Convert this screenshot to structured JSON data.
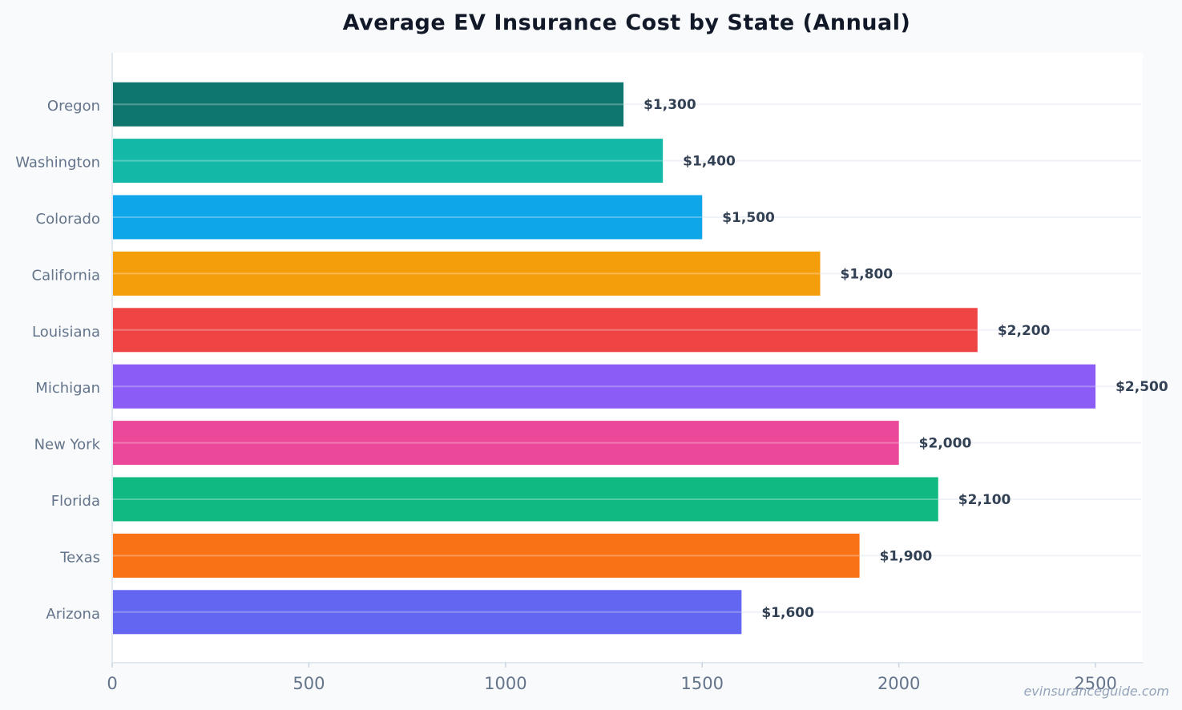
{
  "chart_data": {
    "type": "bar",
    "orientation": "horizontal",
    "title": "Average EV Insurance Cost by State (Annual)",
    "xlabel": "",
    "ylabel": "",
    "categories": [
      "Oregon",
      "Washington",
      "Colorado",
      "California",
      "Louisiana",
      "Michigan",
      "New York",
      "Florida",
      "Texas",
      "Arizona"
    ],
    "values": [
      1300,
      1400,
      1500,
      1800,
      2200,
      2500,
      2000,
      2100,
      1900,
      1600
    ],
    "value_labels": [
      "$1,300",
      "$1,400",
      "$1,500",
      "$1,800",
      "$2,200",
      "$2,500",
      "$2,000",
      "$2,100",
      "$1,900",
      "$1,600"
    ],
    "colors": [
      "#0f766e",
      "#14b8a6",
      "#0ea5e9",
      "#f59e0b",
      "#ef4444",
      "#8b5cf6",
      "#ec4899",
      "#10b981",
      "#f97316",
      "#6366f1"
    ],
    "xlim": [
      0,
      2620
    ],
    "xticks": [
      0,
      500,
      1000,
      1500,
      2000,
      2500
    ],
    "grid": true,
    "legend": "none"
  },
  "watermark": "evinsuranceguide.com"
}
